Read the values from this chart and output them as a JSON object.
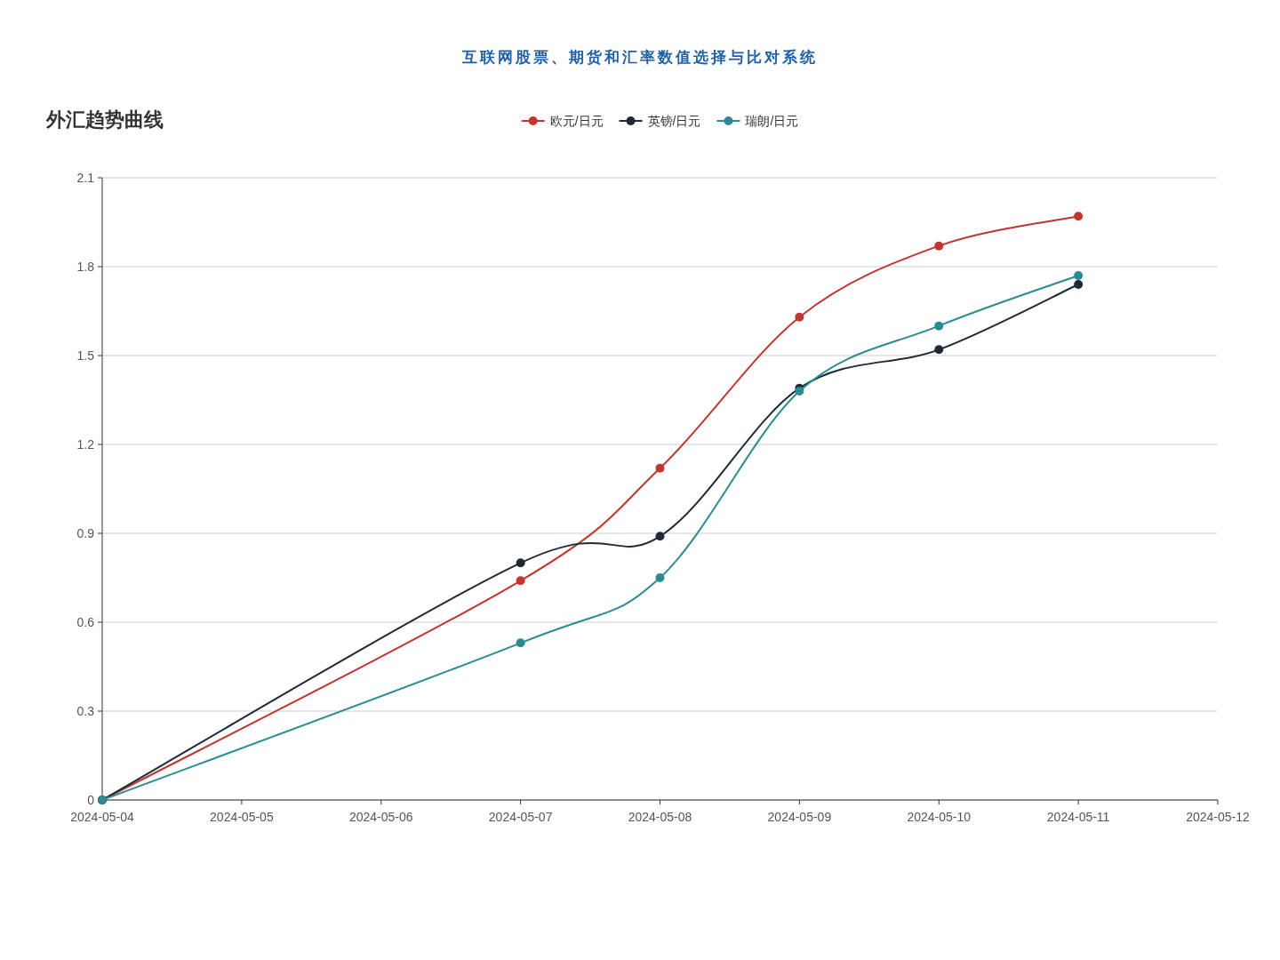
{
  "chart_data": {
    "type": "line",
    "title": "外汇趋势曲线",
    "annotations": [
      "互联网股票、期货和汇率数值选择与比对系统"
    ],
    "x": [
      "2024-05-04",
      "2024-05-07",
      "2024-05-08",
      "2024-05-09",
      "2024-05-10",
      "2024-05-11"
    ],
    "series": [
      {
        "name": "欧元/日元",
        "color": "#c23531",
        "values": [
          0,
          0.74,
          1.12,
          1.63,
          1.87,
          1.97
        ]
      },
      {
        "name": "英镑/日元",
        "color": "#1f2a36",
        "values": [
          0,
          0.8,
          0.89,
          1.39,
          1.52,
          1.74
        ]
      },
      {
        "name": "瑞朗/日元",
        "color": "#2a8c8e",
        "values": [
          0,
          0.53,
          0.75,
          1.38,
          1.6,
          1.77
        ]
      }
    ],
    "xlim": [
      "2024-05-04",
      "2024-05-12"
    ],
    "xticks": [
      "2024-05-04",
      "2024-05-05",
      "2024-05-06",
      "2024-05-07",
      "2024-05-08",
      "2024-05-09",
      "2024-05-10",
      "2024-05-11",
      "2024-05-12"
    ],
    "ylim": [
      0,
      2.1
    ],
    "yticks": [
      0,
      0.3,
      0.6,
      0.9,
      1.2,
      1.5,
      1.8,
      2.1
    ],
    "grid": "y",
    "legend": "top",
    "marker": "circle",
    "line_style": "solid"
  }
}
